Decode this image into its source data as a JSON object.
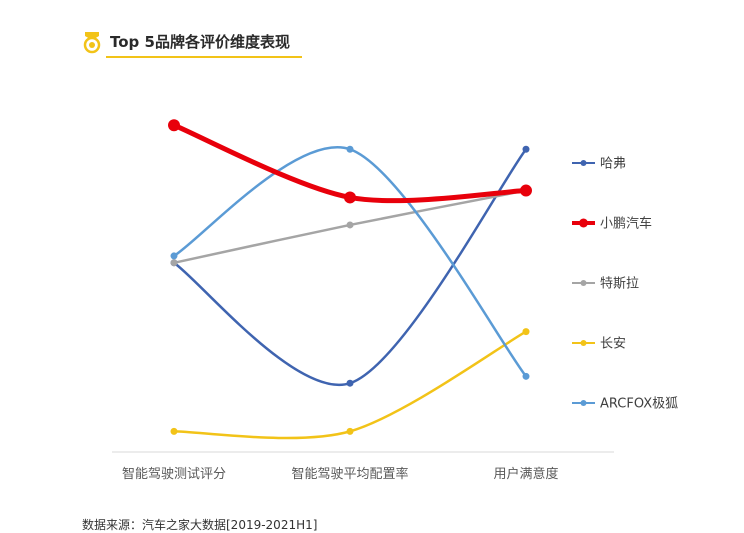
{
  "header": {
    "title": "Top 5品牌各评价维度表现",
    "icon": "medal-icon",
    "accent_color": "#f2c318"
  },
  "footer": {
    "source": "数据来源：汽车之家大数据[2019-2021H1]"
  },
  "chart_data": {
    "type": "line",
    "smooth": true,
    "categories": [
      "智能驾驶测试评分",
      "智能驾驶平均配置率",
      "用户满意度"
    ],
    "series": [
      {
        "name": "哈弗",
        "color": "#3f64b0",
        "values": [
          0.55,
          0.2,
          0.88
        ],
        "highlight": false
      },
      {
        "name": "小鹏汽车",
        "color": "#e8000b",
        "values": [
          0.95,
          0.74,
          0.76
        ],
        "highlight": true
      },
      {
        "name": "特斯拉",
        "color": "#a5a5a5",
        "values": [
          0.55,
          0.66,
          0.76
        ],
        "highlight": false
      },
      {
        "name": "长安",
        "color": "#f2c318",
        "values": [
          0.06,
          0.06,
          0.35
        ],
        "highlight": false
      },
      {
        "name": "ARCFOX极狐",
        "color": "#5b9bd5",
        "values": [
          0.57,
          0.88,
          0.22
        ],
        "highlight": false
      }
    ],
    "ylim": [
      0,
      1
    ],
    "grid": false,
    "legend_position": "right"
  }
}
